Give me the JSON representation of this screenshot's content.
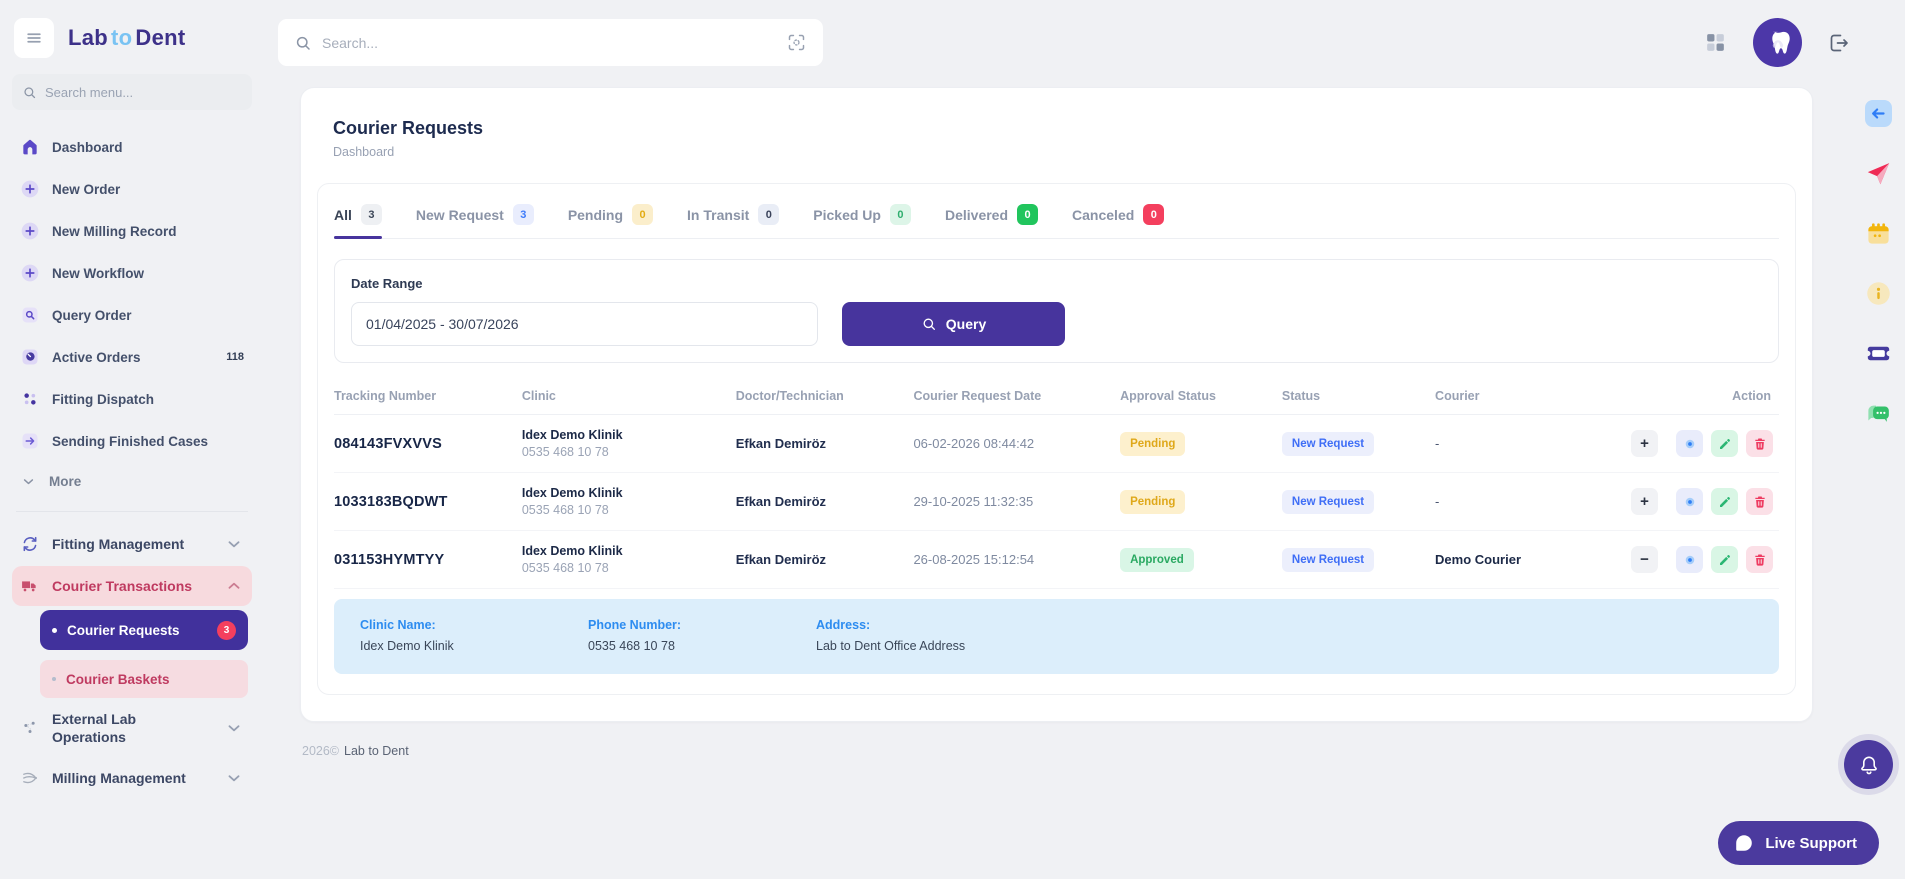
{
  "brand": {
    "logo_lab": "Lab",
    "logo_to": "to",
    "logo_dent": "Dent"
  },
  "topbar": {
    "search_placeholder": "Search..."
  },
  "sidebar": {
    "search_placeholder": "Search menu...",
    "items": [
      {
        "label": "Dashboard",
        "icon": "home"
      },
      {
        "label": "New Order",
        "icon": "plus-circle"
      },
      {
        "label": "New Milling Record",
        "icon": "plus-circle"
      },
      {
        "label": "New Workflow",
        "icon": "plus-circle"
      },
      {
        "label": "Query Order",
        "icon": "doc-search"
      },
      {
        "label": "Active Orders",
        "icon": "active-orders",
        "badge": "118"
      },
      {
        "label": "Fitting Dispatch",
        "icon": "dots-grid"
      },
      {
        "label": "Sending Finished Cases",
        "icon": "send-arrow"
      },
      {
        "label": "More",
        "icon": "chevron-down",
        "muted": true
      }
    ],
    "groups": [
      {
        "label": "Fitting Management",
        "icon": "refresh",
        "chevron": "down"
      },
      {
        "label": "Courier Transactions",
        "icon": "truck",
        "chevron": "up",
        "highlight": true
      },
      {
        "label": "Courier Requests",
        "child": true,
        "active": true,
        "badge": "3"
      },
      {
        "label": "Courier Baskets",
        "child": true
      },
      {
        "label": "External Lab Operations",
        "icon": "nodes",
        "chevron": "down"
      },
      {
        "label": "Milling Management",
        "icon": "milling",
        "chevron": "down"
      }
    ]
  },
  "page": {
    "title": "Courier Requests",
    "breadcrumb": "Dashboard"
  },
  "tabs": [
    {
      "label": "All",
      "badge": "3",
      "badge_style": "gray",
      "active": true
    },
    {
      "label": "New Request",
      "badge": "3",
      "badge_style": "indigo"
    },
    {
      "label": "Pending",
      "badge": "0",
      "badge_style": "amber"
    },
    {
      "label": "In Transit",
      "badge": "0",
      "badge_style": "slate"
    },
    {
      "label": "Picked Up",
      "badge": "0",
      "badge_style": "green-light"
    },
    {
      "label": "Delivered",
      "badge": "0",
      "badge_style": "green-solid"
    },
    {
      "label": "Canceled",
      "badge": "0",
      "badge_style": "red-solid"
    }
  ],
  "filter": {
    "date_range_label": "Date Range",
    "date_range_value": "01/04/2025 - 30/07/2026",
    "query_label": "Query"
  },
  "table": {
    "columns": [
      "Tracking Number",
      "Clinic",
      "Doctor/Technician",
      "Courier Request Date",
      "Approval Status",
      "Status",
      "Courier",
      "Action"
    ],
    "rows": [
      {
        "tracking": "084143FVXVVS",
        "clinic_name": "Idex Demo Klinik",
        "clinic_phone": "0535 468 10 78",
        "doctor": "Efkan Demiröz",
        "request_date": "06-02-2026 08:44:42",
        "approval_status": "Pending",
        "approval_style": "amber",
        "status": "New Request",
        "courier": "-",
        "expander": "plus",
        "expanded": false
      },
      {
        "tracking": "1033183BQDWT",
        "clinic_name": "Idex Demo Klinik",
        "clinic_phone": "0535 468 10 78",
        "doctor": "Efkan Demiröz",
        "request_date": "29-10-2025 11:32:35",
        "approval_status": "Pending",
        "approval_style": "amber",
        "status": "New Request",
        "courier": "-",
        "expander": "plus",
        "expanded": false
      },
      {
        "tracking": "031153HYMTYY",
        "clinic_name": "Idex Demo Klinik",
        "clinic_phone": "0535 468 10 78",
        "doctor": "Efkan Demiröz",
        "request_date": "26-08-2025 15:12:54",
        "approval_status": "Approved",
        "approval_style": "green",
        "status": "New Request",
        "courier": "Demo Courier",
        "expander": "minus",
        "expanded": true
      }
    ]
  },
  "detail_panel": {
    "clinic_name_label": "Clinic Name:",
    "clinic_name": "Idex Demo Klinik",
    "phone_label": "Phone Number:",
    "phone": "0535 468 10 78",
    "address_label": "Address:",
    "address": "Lab to Dent Office Address"
  },
  "footer": {
    "year": "2026©",
    "brand": "Lab to Dent"
  },
  "floating": {
    "live_support_label": "Live Support",
    "rail_icons": [
      "back",
      "send-plane",
      "calendar",
      "info",
      "ticket",
      "chat"
    ]
  },
  "colors": {
    "accent_purple": "#47349d",
    "active_item_purple": "#41319c",
    "brand_dark": "#3d3189",
    "brand_light_blue": "#79c3f3",
    "rose_text": "#bf3a60",
    "rose_bg": "#f7dade",
    "badge_red": "#f43f5e",
    "delivered_green": "#21c55d",
    "pending_amber_text": "#dfa81a",
    "pending_amber_bg": "#fdf0cd",
    "approved_green_text": "#2aa962",
    "approved_green_bg": "#d9f6e6",
    "status_blue_text": "#3f6ef6",
    "status_blue_bg": "#eceffc",
    "info_panel_bg": "#dceefb",
    "info_label_blue": "#2d8cf0",
    "page_bg": "#f0f1f4"
  }
}
